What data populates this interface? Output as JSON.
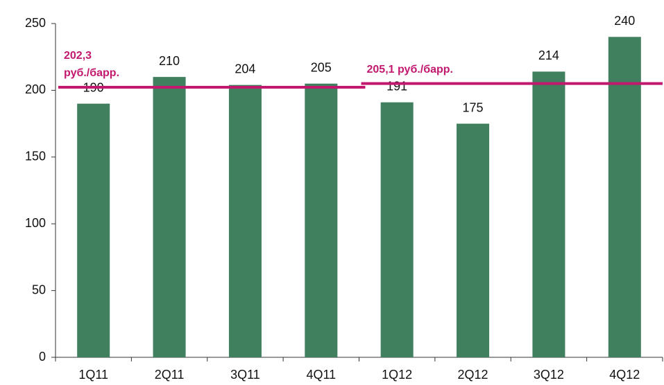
{
  "chart_data": {
    "type": "bar",
    "categories": [
      "1Q11",
      "2Q11",
      "3Q11",
      "4Q11",
      "1Q12",
      "2Q12",
      "3Q12",
      "4Q12"
    ],
    "values": [
      190,
      210,
      204,
      205,
      191,
      175,
      214,
      240
    ],
    "color": "#41805f",
    "ylim": [
      0,
      250
    ],
    "yticks": [
      0,
      50,
      100,
      150,
      200,
      250
    ],
    "grid": false,
    "reference_lines": [
      {
        "value": 202.3,
        "label": [
          "202,3",
          "руб./барр."
        ],
        "start_category": "1Q11",
        "end_category": "4Q11",
        "color": "#c2186e"
      },
      {
        "value": 205.1,
        "label": [
          "205,1 руб./барр."
        ],
        "start_category": "1Q12",
        "end_category": "4Q12",
        "color": "#c2186e"
      }
    ]
  }
}
